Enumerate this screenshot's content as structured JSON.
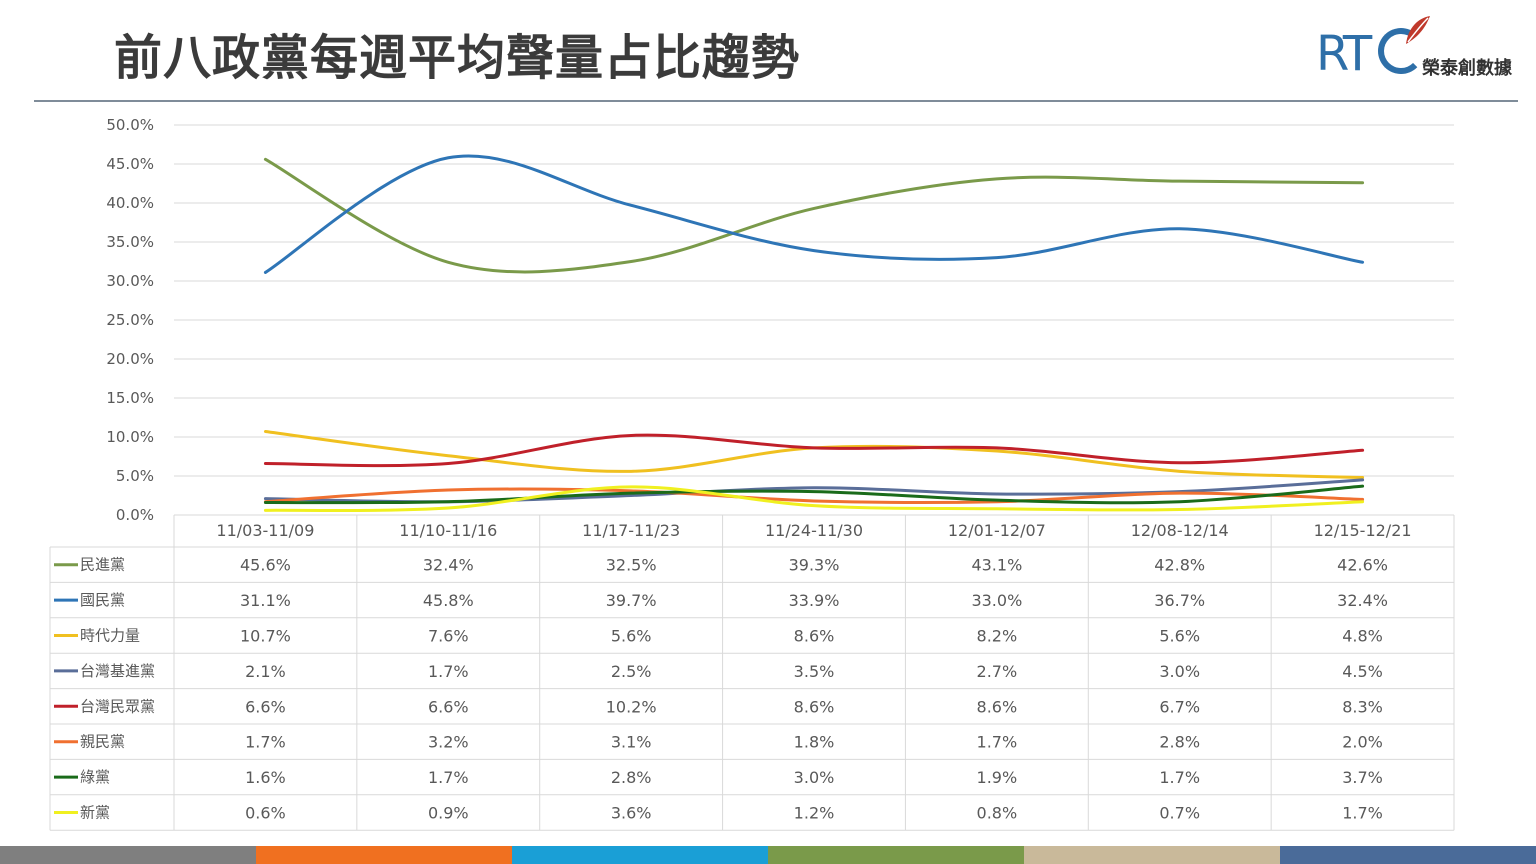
{
  "slide": {
    "title": "前八政黨每週平均聲量占比趨勢"
  },
  "logo": {
    "mark": "RT",
    "text": "榮泰創數據",
    "color": "#2e6fa8",
    "accent": "#c0392b"
  },
  "footer_colors": [
    "#7f7f7f",
    "#f07020",
    "#1a9fd6",
    "#7a9a4a",
    "#c9b99a",
    "#4a6b99"
  ],
  "chart_data": {
    "type": "line",
    "title": "",
    "categories": [
      "11/03-11/09",
      "11/10-11/16",
      "11/17-11/23",
      "11/24-11/30",
      "12/01-12/07",
      "12/08-12/14",
      "12/15-12/21"
    ],
    "y_ticks": [
      "0.0%",
      "5.0%",
      "10.0%",
      "15.0%",
      "20.0%",
      "25.0%",
      "30.0%",
      "35.0%",
      "40.0%",
      "45.0%",
      "50.0%"
    ],
    "ylim": [
      0,
      50
    ],
    "y_unit": "%",
    "grid": true,
    "legend_placement": "data-table",
    "series": [
      {
        "name": "民進黨",
        "color": "#7a9a4a",
        "values": [
          45.6,
          32.4,
          32.5,
          39.3,
          43.1,
          42.8,
          42.6
        ],
        "labels": [
          "45.6%",
          "32.4%",
          "32.5%",
          "39.3%",
          "43.1%",
          "42.8%",
          "42.6%"
        ]
      },
      {
        "name": "國民黨",
        "color": "#2e75b6",
        "values": [
          31.1,
          45.8,
          39.7,
          33.9,
          33.0,
          36.7,
          32.4
        ],
        "labels": [
          "31.1%",
          "45.8%",
          "39.7%",
          "33.9%",
          "33.0%",
          "36.7%",
          "32.4%"
        ]
      },
      {
        "name": "時代力量",
        "color": "#f0c020",
        "values": [
          10.7,
          7.6,
          5.6,
          8.6,
          8.2,
          5.6,
          4.8
        ],
        "labels": [
          "10.7%",
          "7.6%",
          "5.6%",
          "8.6%",
          "8.2%",
          "5.6%",
          "4.8%"
        ]
      },
      {
        "name": "台灣基進黨",
        "color": "#5a6e99",
        "values": [
          2.1,
          1.7,
          2.5,
          3.5,
          2.7,
          3.0,
          4.5
        ],
        "labels": [
          "2.1%",
          "1.7%",
          "2.5%",
          "3.5%",
          "2.7%",
          "3.0%",
          "4.5%"
        ]
      },
      {
        "name": "台灣民眾黨",
        "color": "#c0202a",
        "values": [
          6.6,
          6.6,
          10.2,
          8.6,
          8.6,
          6.7,
          8.3
        ],
        "labels": [
          "6.6%",
          "6.6%",
          "10.2%",
          "8.6%",
          "8.6%",
          "6.7%",
          "8.3%"
        ]
      },
      {
        "name": "親民黨",
        "color": "#f07030",
        "values": [
          1.7,
          3.2,
          3.1,
          1.8,
          1.7,
          2.8,
          2.0
        ],
        "labels": [
          "1.7%",
          "3.2%",
          "3.1%",
          "1.8%",
          "1.7%",
          "2.8%",
          "2.0%"
        ]
      },
      {
        "name": "綠黨",
        "color": "#1a6b1a",
        "values": [
          1.6,
          1.7,
          2.8,
          3.0,
          1.9,
          1.7,
          3.7
        ],
        "labels": [
          "1.6%",
          "1.7%",
          "2.8%",
          "3.0%",
          "1.9%",
          "1.7%",
          "3.7%"
        ]
      },
      {
        "name": "新黨",
        "color": "#f0f020",
        "values": [
          0.6,
          0.9,
          3.6,
          1.2,
          0.8,
          0.7,
          1.7
        ],
        "labels": [
          "0.6%",
          "0.9%",
          "3.6%",
          "1.2%",
          "0.8%",
          "0.7%",
          "1.7%"
        ]
      }
    ]
  }
}
